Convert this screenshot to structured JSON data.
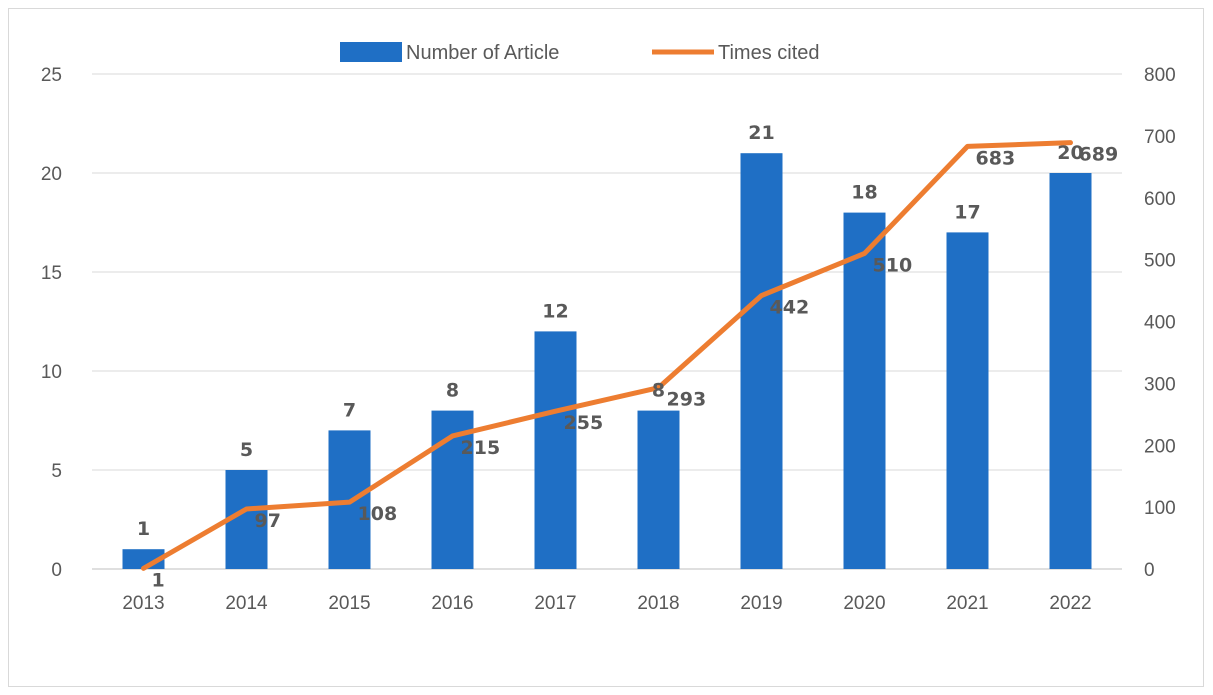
{
  "chart_data": {
    "type": "bar",
    "categories": [
      "2013",
      "2014",
      "2015",
      "2016",
      "2017",
      "2018",
      "2019",
      "2020",
      "2021",
      "2022"
    ],
    "series": [
      {
        "name": "Number of Article",
        "type": "bar",
        "axis": "left",
        "color": "#1f6fc5",
        "values": [
          1,
          5,
          7,
          8,
          12,
          8,
          21,
          18,
          17,
          20
        ]
      },
      {
        "name": "Times cited",
        "type": "line",
        "axis": "right",
        "color": "#ed7d31",
        "values": [
          1,
          97,
          108,
          215,
          255,
          293,
          442,
          510,
          683,
          689
        ]
      }
    ],
    "y_left": {
      "range": [
        0,
        25
      ],
      "ticks": [
        "0",
        "5",
        "10",
        "15",
        "20",
        "25"
      ]
    },
    "y_right": {
      "range": [
        0,
        800
      ],
      "ticks": [
        "0",
        "100",
        "200",
        "300",
        "400",
        "500",
        "600",
        "700",
        "800"
      ]
    },
    "legend_position": "top",
    "grid": "horizontal",
    "title": "",
    "xlabel": "",
    "ylabel": ""
  }
}
